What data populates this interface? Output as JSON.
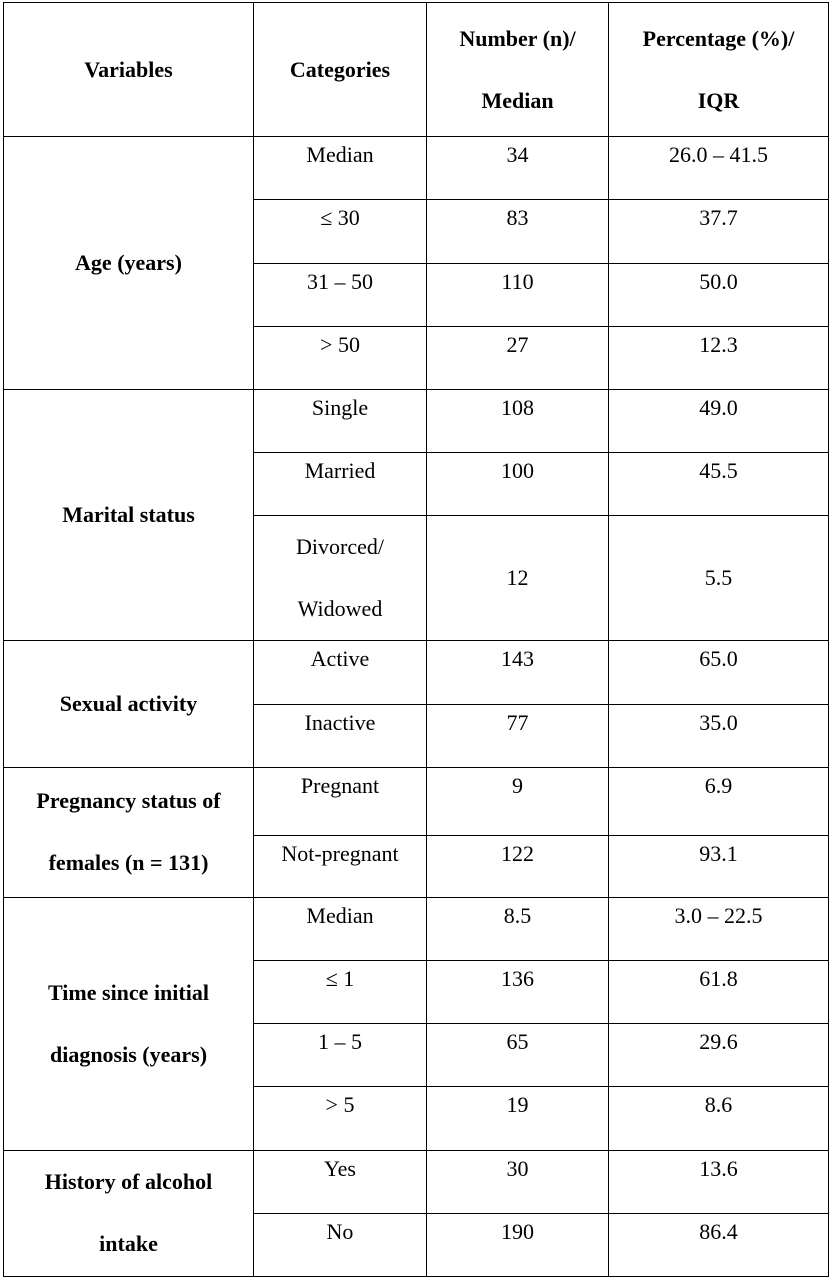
{
  "headers": {
    "variables": "Variables",
    "categories": "Categories",
    "number_l1": "Number (n)/",
    "number_l2": "Median",
    "percent_l1": "Percentage (%)/",
    "percent_l2": "IQR"
  },
  "groups": {
    "age": {
      "label": "Age (years)",
      "rows": [
        {
          "category": "Median",
          "n": "34",
          "pct": "26.0 – 41.5"
        },
        {
          "category": "≤ 30",
          "n": "83",
          "pct": "37.7"
        },
        {
          "category": "31 – 50",
          "n": "110",
          "pct": "50.0"
        },
        {
          "category": "> 50",
          "n": "27",
          "pct": "12.3"
        }
      ]
    },
    "marital": {
      "label": "Marital status",
      "rows": [
        {
          "category": "Single",
          "n": "108",
          "pct": "49.0"
        },
        {
          "category": "Married",
          "n": "100",
          "pct": "45.5"
        },
        {
          "category_l1": "Divorced/",
          "category_l2": "Widowed",
          "n": "12",
          "pct": "5.5"
        }
      ]
    },
    "sexual": {
      "label": "Sexual activity",
      "rows": [
        {
          "category": "Active",
          "n": "143",
          "pct": "65.0"
        },
        {
          "category": "Inactive",
          "n": "77",
          "pct": "35.0"
        }
      ]
    },
    "pregnancy": {
      "label_l1": "Pregnancy status of",
      "label_l2": "females (n = 131)",
      "rows": [
        {
          "category": "Pregnant",
          "n": "9",
          "pct": "6.9"
        },
        {
          "category": "Not-pregnant",
          "n": "122",
          "pct": "93.1"
        }
      ]
    },
    "diagnosis": {
      "label_l1": "Time since initial",
      "label_l2": "diagnosis (years)",
      "rows": [
        {
          "category": "Median",
          "n": "8.5",
          "pct": "3.0 – 22.5"
        },
        {
          "category": "≤ 1",
          "n": "136",
          "pct": "61.8"
        },
        {
          "category": "1 – 5",
          "n": "65",
          "pct": "29.6"
        },
        {
          "category": "> 5",
          "n": "19",
          "pct": "8.6"
        }
      ]
    },
    "alcohol": {
      "label_l1": "History of alcohol",
      "label_l2": "intake",
      "rows": [
        {
          "category": "Yes",
          "n": "30",
          "pct": "13.6"
        },
        {
          "category": "No",
          "n": "190",
          "pct": "86.4"
        }
      ]
    }
  }
}
